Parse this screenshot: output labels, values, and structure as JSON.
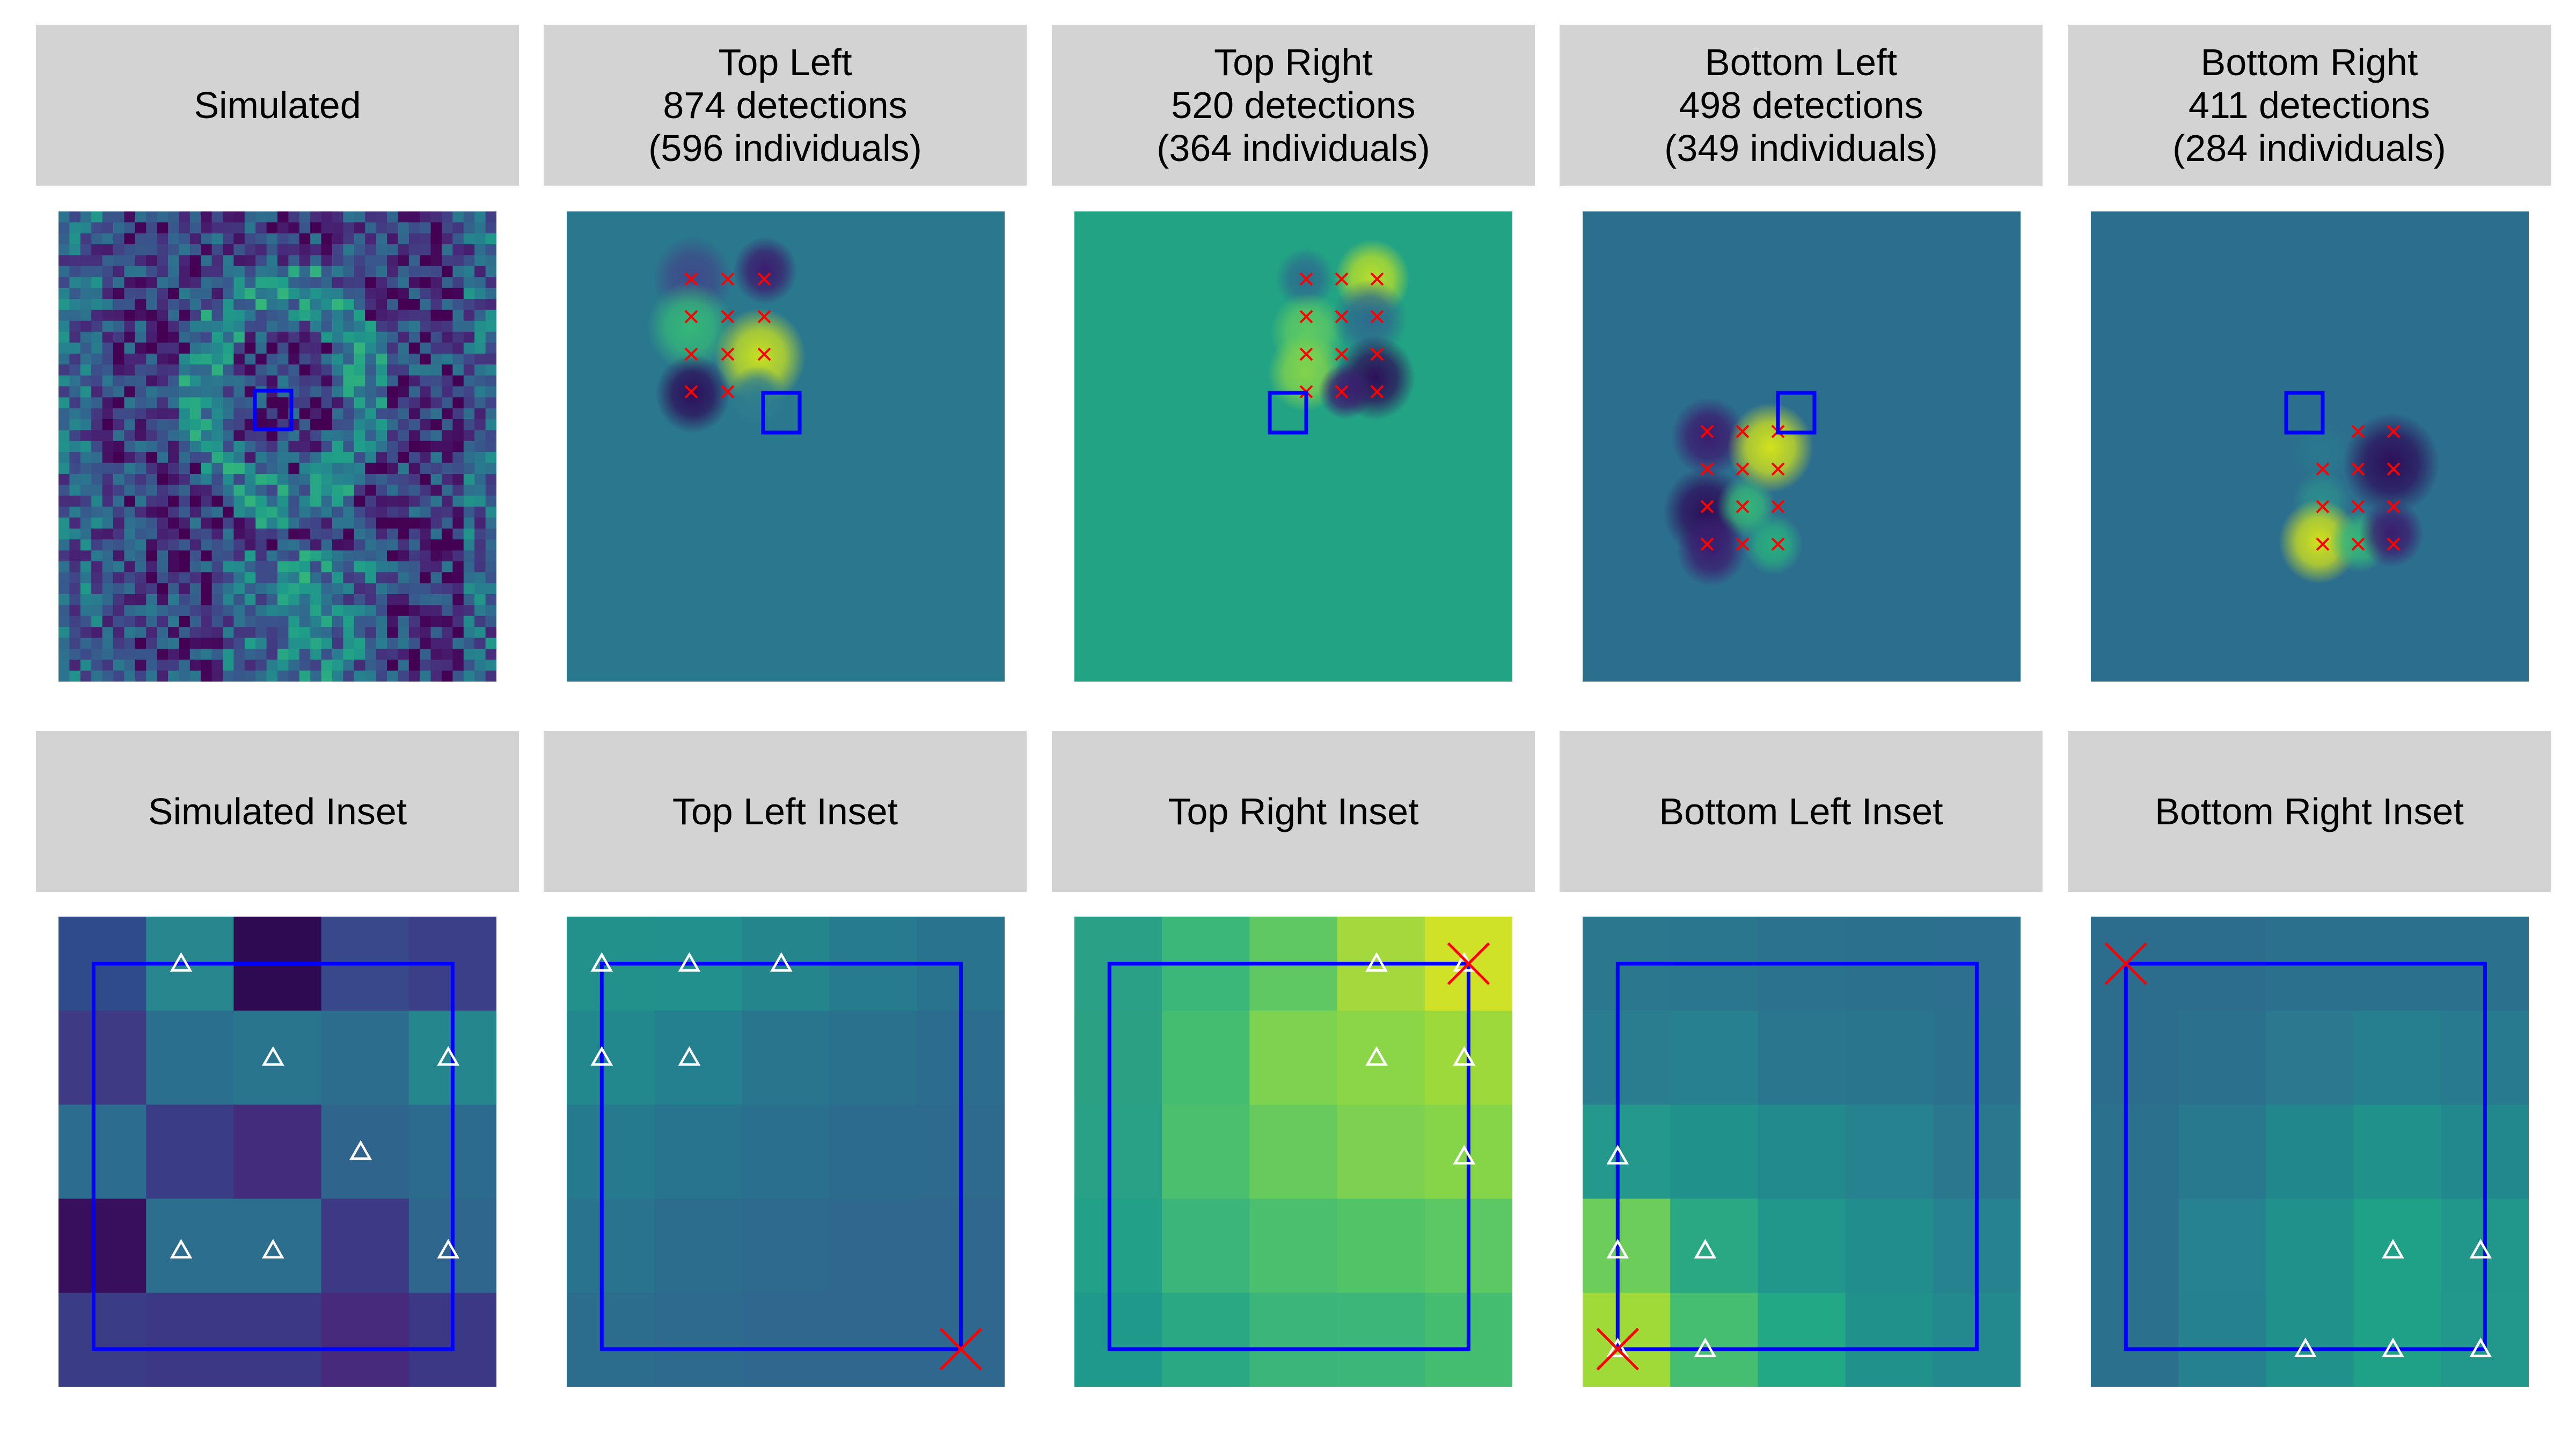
{
  "panels": [
    {
      "key": "sim",
      "header": "Simulated",
      "variant": "noisy"
    },
    {
      "key": "tl",
      "header": "Top Left\n874 detections\n(596 individuals)",
      "variant": "tl"
    },
    {
      "key": "tr",
      "header": "Top Right\n520 detections\n(364 individuals)",
      "variant": "tr"
    },
    {
      "key": "bl",
      "header": "Bottom Left\n498 detections\n(349 individuals)",
      "variant": "bl"
    },
    {
      "key": "br",
      "header": "Bottom Right\n411 detections\n(284 individuals)",
      "variant": "br"
    }
  ],
  "insets": [
    {
      "key": "sim_inset",
      "header": "Simulated Inset"
    },
    {
      "key": "tl_inset",
      "header": "Top Left Inset"
    },
    {
      "key": "tr_inset",
      "header": "Top Right Inset"
    },
    {
      "key": "bl_inset",
      "header": "Bottom Left Inset"
    },
    {
      "key": "br_inset",
      "header": "Bottom Right Inset"
    }
  ],
  "colors": {
    "header_bg": "#d3d3d3",
    "box": "#0000ff",
    "cross": "#ff0000",
    "triangle": "#ffffff"
  },
  "inset_cells": {
    "sim_inset": [
      [
        "#2f4b8c",
        "#27868e",
        "#2e0a53",
        "#37498a",
        "#3a3f87"
      ],
      [
        "#3f3a84",
        "#2b6f8e",
        "#2a758e",
        "#2c6d8e",
        "#26868e"
      ],
      [
        "#2c6c8e",
        "#3a3c86",
        "#432c7c",
        "#2f658d",
        "#2c6b8e"
      ],
      [
        "#370f5c",
        "#2c6e8e",
        "#2c6e8e",
        "#3c3a85",
        "#2f668d"
      ],
      [
        "#3a3d86",
        "#3b3986",
        "#3b3986",
        "#472a7b",
        "#3b3986"
      ]
    ],
    "tl_inset": [
      [
        "#22918c",
        "#22908c",
        "#24858d",
        "#267b8e",
        "#2a738e"
      ],
      [
        "#23888d",
        "#247f8e",
        "#27768e",
        "#2a718e",
        "#2c6c8e"
      ],
      [
        "#267a8e",
        "#28748e",
        "#2b6f8e",
        "#2c6b8e",
        "#2d6a8e"
      ],
      [
        "#2a738e",
        "#2c6d8e",
        "#2d6a8e",
        "#2e688e",
        "#2e688e"
      ],
      [
        "#2c6d8e",
        "#2d6a8e",
        "#2e688e",
        "#2e688e",
        "#2e688e"
      ]
    ],
    "tr_inset": [
      [
        "#2aa186",
        "#3bb779",
        "#5fc863",
        "#a4d93e",
        "#cfe228"
      ],
      [
        "#2ca083",
        "#44bd70",
        "#7dd250",
        "#8bd646",
        "#9dd93b"
      ],
      [
        "#28a186",
        "#4bbf6e",
        "#66ca5d",
        "#7cd250",
        "#86d549"
      ],
      [
        "#23a088",
        "#3bb57a",
        "#4bbf6e",
        "#51c468",
        "#5cc863"
      ],
      [
        "#1f9a8a",
        "#2aa884",
        "#3bb57a",
        "#3db67a",
        "#44bd70"
      ]
    ],
    "bl_inset": [
      [
        "#2a788e",
        "#2a768e",
        "#2b728e",
        "#2b718e",
        "#2c6f8e"
      ],
      [
        "#2a7d8e",
        "#27808e",
        "#28778e",
        "#2a758e",
        "#2b718e"
      ],
      [
        "#23988b",
        "#21918c",
        "#22898c",
        "#26828e",
        "#2a788e"
      ],
      [
        "#6ccd5a",
        "#2aa884",
        "#21968b",
        "#228d8d",
        "#26828e"
      ],
      [
        "#a0da39",
        "#45be71",
        "#22a884",
        "#21918c",
        "#23898e"
      ]
    ],
    "br_inset": [
      [
        "#2c6d8e",
        "#2c6d8e",
        "#2b718e",
        "#2b718e",
        "#2b718e"
      ],
      [
        "#2c6d8e",
        "#2b718e",
        "#2a798e",
        "#267f8e",
        "#287b8e"
      ],
      [
        "#2b718e",
        "#28788e",
        "#22868d",
        "#21918c",
        "#23888d"
      ],
      [
        "#2b718e",
        "#25828e",
        "#21918c",
        "#1fa187",
        "#21968b"
      ],
      [
        "#2b718e",
        "#26818e",
        "#21918c",
        "#1fa187",
        "#22978b"
      ]
    ]
  },
  "inset_boxes": {
    "sim_inset": [
      0.08,
      0.1,
      0.9,
      0.92
    ],
    "tl_inset": [
      0.08,
      0.1,
      0.9,
      0.92
    ],
    "tr_inset": [
      0.08,
      0.1,
      0.9,
      0.92
    ],
    "bl_inset": [
      0.08,
      0.1,
      0.9,
      0.92
    ],
    "br_inset": [
      0.08,
      0.1,
      0.9,
      0.92
    ]
  },
  "inset_triangles": {
    "sim_inset": [
      [
        0.28,
        0.1
      ],
      [
        0.49,
        0.3
      ],
      [
        0.89,
        0.3
      ],
      [
        0.69,
        0.5
      ],
      [
        0.28,
        0.71
      ],
      [
        0.49,
        0.71
      ],
      [
        0.89,
        0.71
      ]
    ],
    "tl_inset": [
      [
        0.08,
        0.1
      ],
      [
        0.28,
        0.1
      ],
      [
        0.49,
        0.1
      ],
      [
        0.08,
        0.3
      ],
      [
        0.28,
        0.3
      ]
    ],
    "tr_inset": [
      [
        0.69,
        0.1
      ],
      [
        0.89,
        0.1
      ],
      [
        0.69,
        0.3
      ],
      [
        0.89,
        0.3
      ],
      [
        0.89,
        0.51
      ]
    ],
    "bl_inset": [
      [
        0.08,
        0.51
      ],
      [
        0.08,
        0.71
      ],
      [
        0.28,
        0.71
      ],
      [
        0.08,
        0.92
      ],
      [
        0.28,
        0.92
      ]
    ],
    "br_inset": [
      [
        0.69,
        0.71
      ],
      [
        0.89,
        0.71
      ],
      [
        0.49,
        0.92
      ],
      [
        0.69,
        0.92
      ],
      [
        0.89,
        0.92
      ]
    ]
  },
  "inset_crosses": {
    "sim_inset": [],
    "tl_inset": [
      [
        0.9,
        0.92
      ]
    ],
    "tr_inset": [
      [
        0.9,
        0.1
      ]
    ],
    "bl_inset": [
      [
        0.08,
        0.92
      ]
    ],
    "br_inset": [
      [
        0.08,
        0.1
      ]
    ]
  }
}
